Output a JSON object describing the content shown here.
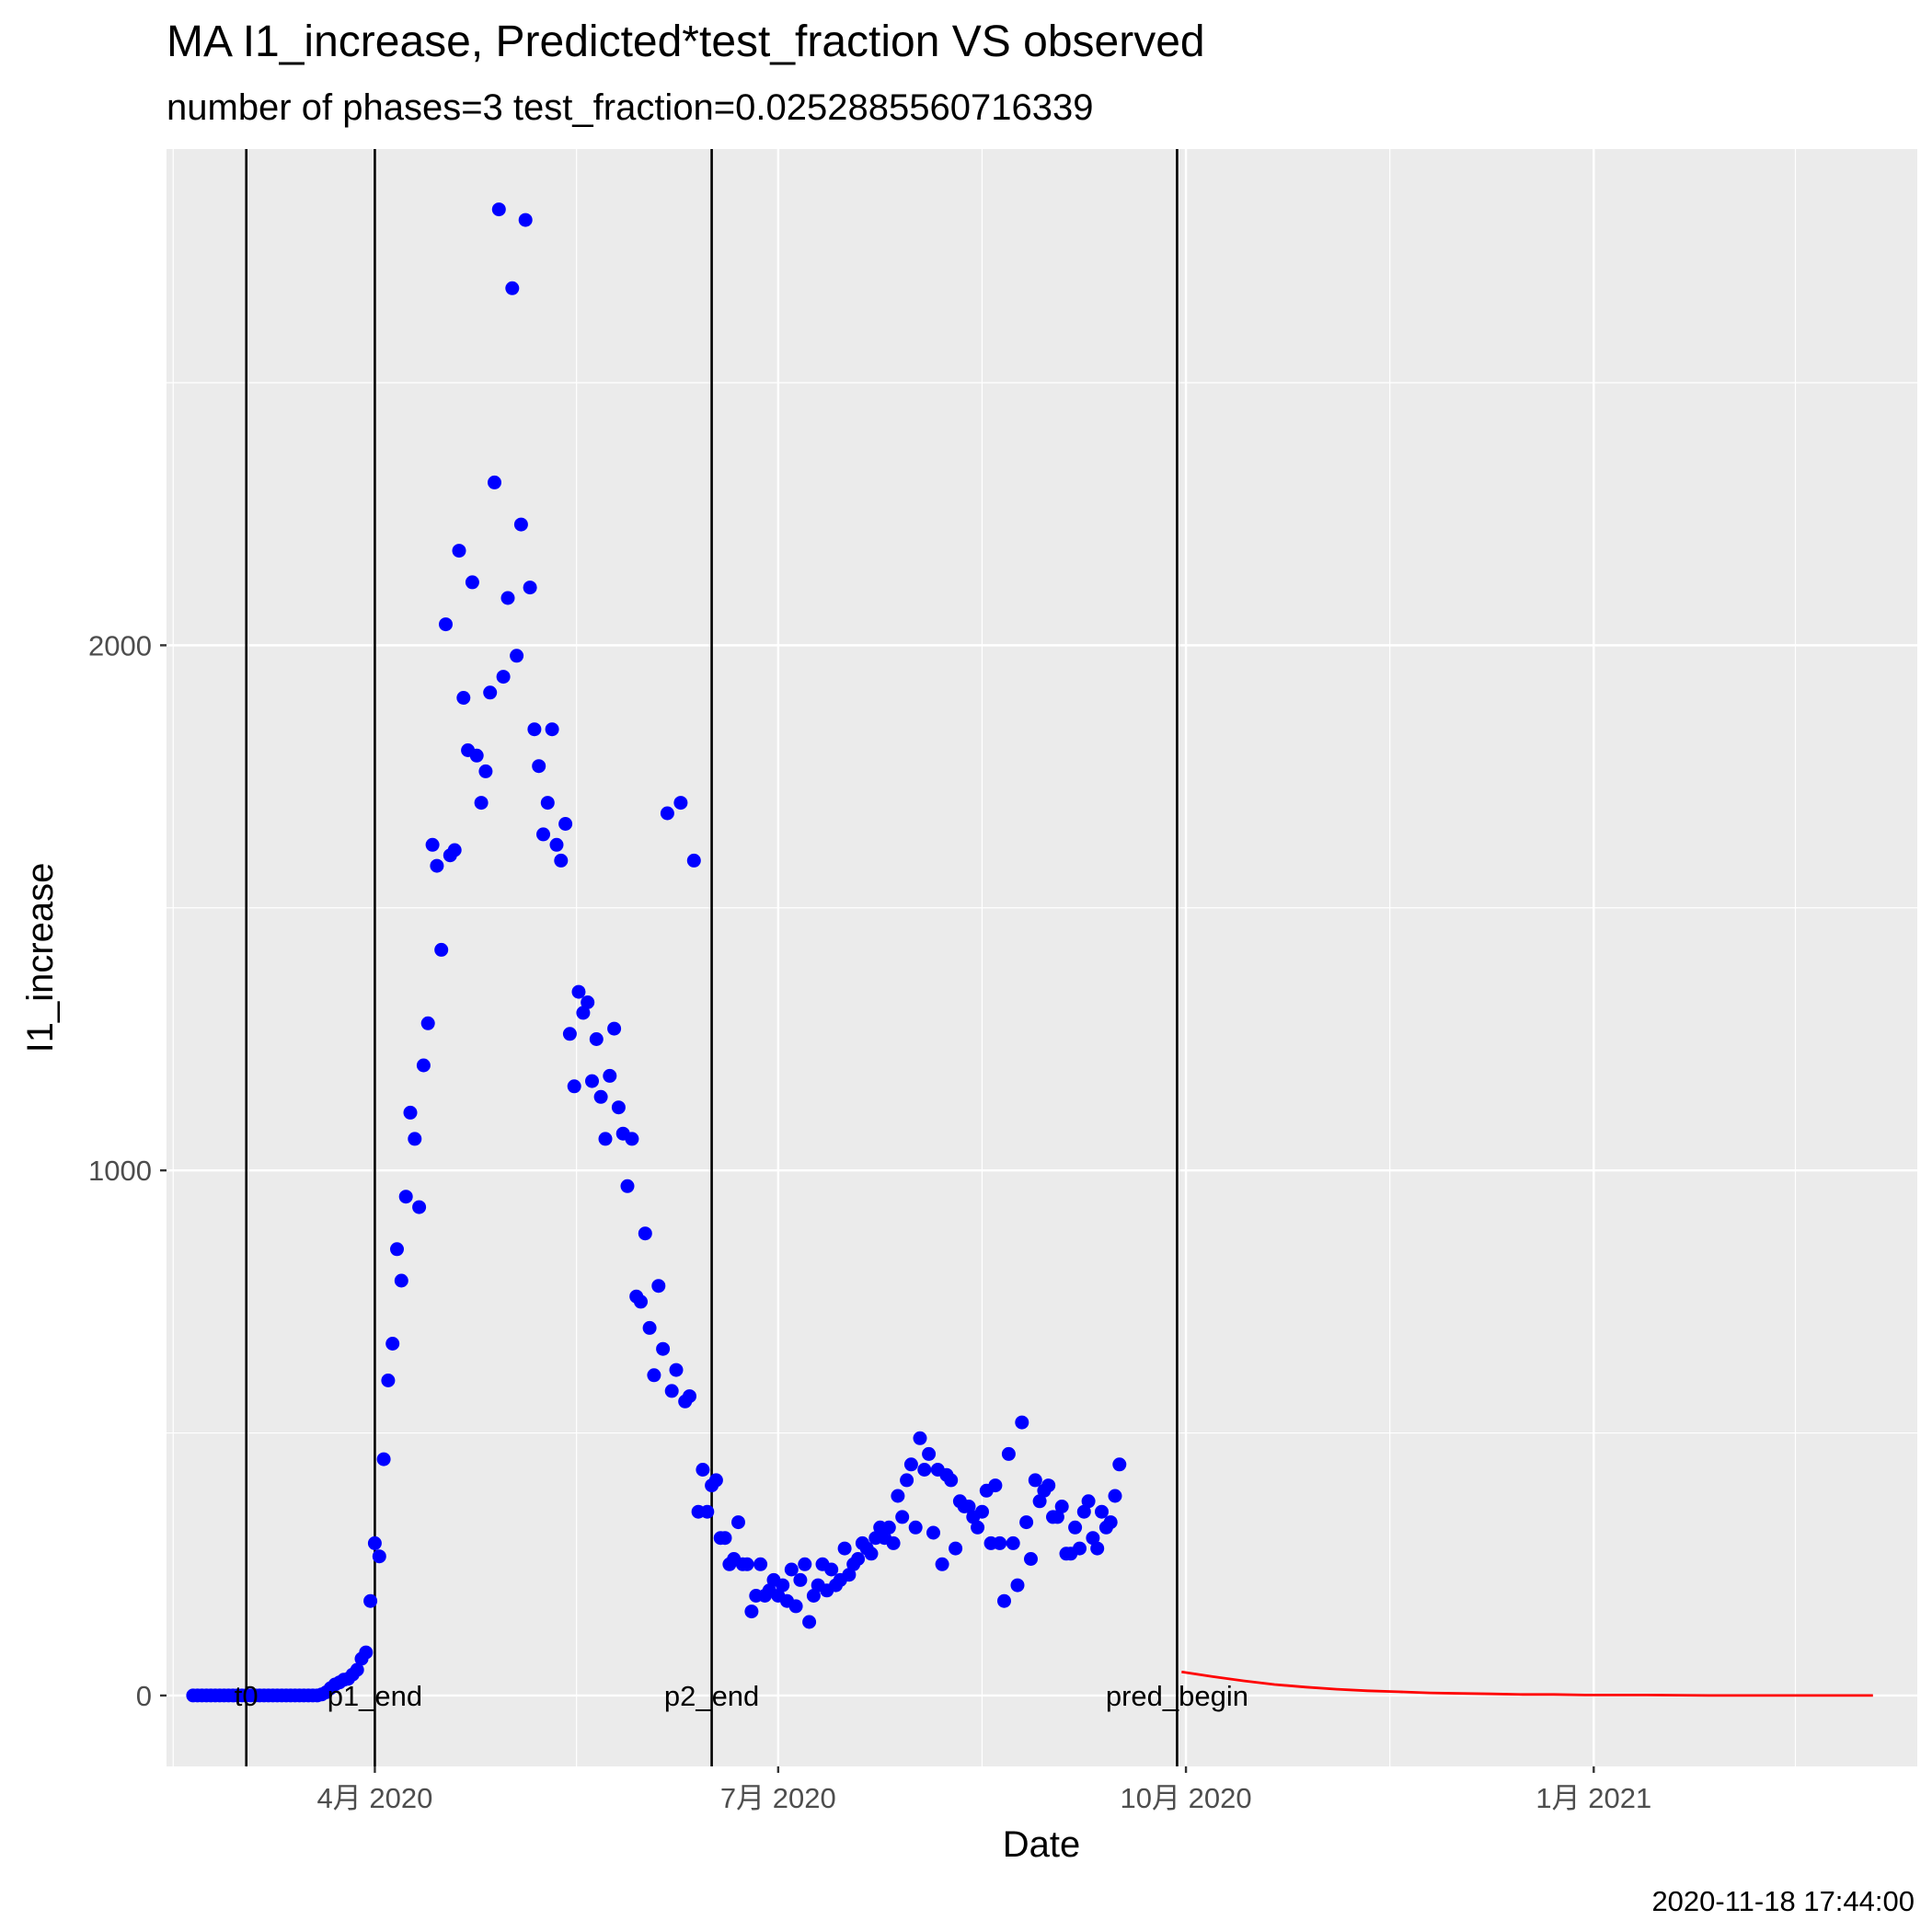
{
  "chart_data": {
    "type": "scatter",
    "title": "MA I1_increase, Predicted*test_fraction VS observed",
    "subtitle": "number of phases=3   test_fraction=0.0252885560716339",
    "xlabel": "Date",
    "ylabel": "I1_increase",
    "caption": "2020-11-18 17:44:00",
    "x_ticks": [
      {
        "date": "2020-04-01",
        "label": "4月 2020"
      },
      {
        "date": "2020-07-01",
        "label": "7月 2020"
      },
      {
        "date": "2020-10-01",
        "label": "10月 2020"
      },
      {
        "date": "2021-01-01",
        "label": "1月 2021"
      }
    ],
    "y_ticks": [
      0,
      1000,
      2000
    ],
    "xlim": [
      "2020-02-14",
      "2021-03-15"
    ],
    "ylim": [
      -135,
      2945
    ],
    "grid": true,
    "background": "#ebebeb",
    "vertical_lines": [
      {
        "date": "2020-03-03",
        "label": "t0"
      },
      {
        "date": "2020-04-01",
        "label": "p1_end"
      },
      {
        "date": "2020-06-16",
        "label": "p2_end"
      },
      {
        "date": "2020-09-29",
        "label": "pred_begin"
      }
    ],
    "series": [
      {
        "type": "scatter",
        "color": "#0000ff",
        "points": [
          [
            "2020-02-20",
            0
          ],
          [
            "2020-02-21",
            0
          ],
          [
            "2020-02-22",
            0
          ],
          [
            "2020-02-23",
            0
          ],
          [
            "2020-02-24",
            0
          ],
          [
            "2020-02-25",
            0
          ],
          [
            "2020-02-26",
            0
          ],
          [
            "2020-02-27",
            0
          ],
          [
            "2020-02-28",
            0
          ],
          [
            "2020-02-29",
            0
          ],
          [
            "2020-03-01",
            0
          ],
          [
            "2020-03-02",
            0
          ],
          [
            "2020-03-03",
            0
          ],
          [
            "2020-03-04",
            0
          ],
          [
            "2020-03-05",
            0
          ],
          [
            "2020-03-06",
            0
          ],
          [
            "2020-03-07",
            0
          ],
          [
            "2020-03-08",
            0
          ],
          [
            "2020-03-09",
            0
          ],
          [
            "2020-03-10",
            0
          ],
          [
            "2020-03-11",
            0
          ],
          [
            "2020-03-12",
            0
          ],
          [
            "2020-03-13",
            0
          ],
          [
            "2020-03-14",
            0
          ],
          [
            "2020-03-15",
            0
          ],
          [
            "2020-03-16",
            0
          ],
          [
            "2020-03-17",
            0
          ],
          [
            "2020-03-18",
            0
          ],
          [
            "2020-03-19",
            0
          ],
          [
            "2020-03-20",
            2
          ],
          [
            "2020-03-21",
            6
          ],
          [
            "2020-03-22",
            14
          ],
          [
            "2020-03-23",
            21
          ],
          [
            "2020-03-24",
            25
          ],
          [
            "2020-03-25",
            30
          ],
          [
            "2020-03-26",
            32
          ],
          [
            "2020-03-27",
            40
          ],
          [
            "2020-03-28",
            49
          ],
          [
            "2020-03-29",
            70
          ],
          [
            "2020-03-30",
            82
          ],
          [
            "2020-03-31",
            180
          ],
          [
            "2020-04-01",
            290
          ],
          [
            "2020-04-02",
            265
          ],
          [
            "2020-04-03",
            450
          ],
          [
            "2020-04-04",
            600
          ],
          [
            "2020-04-05",
            670
          ],
          [
            "2020-04-06",
            850
          ],
          [
            "2020-04-07",
            790
          ],
          [
            "2020-04-08",
            950
          ],
          [
            "2020-04-09",
            1110
          ],
          [
            "2020-04-10",
            1060
          ],
          [
            "2020-04-11",
            930
          ],
          [
            "2020-04-12",
            1200
          ],
          [
            "2020-04-13",
            1280
          ],
          [
            "2020-04-14",
            1620
          ],
          [
            "2020-04-15",
            1580
          ],
          [
            "2020-04-16",
            1420
          ],
          [
            "2020-04-17",
            2040
          ],
          [
            "2020-04-18",
            1600
          ],
          [
            "2020-04-19",
            1610
          ],
          [
            "2020-04-20",
            2180
          ],
          [
            "2020-04-21",
            1900
          ],
          [
            "2020-04-22",
            1800
          ],
          [
            "2020-04-23",
            2120
          ],
          [
            "2020-04-24",
            1790
          ],
          [
            "2020-04-25",
            1700
          ],
          [
            "2020-04-26",
            1760
          ],
          [
            "2020-04-27",
            1910
          ],
          [
            "2020-04-28",
            2310
          ],
          [
            "2020-04-29",
            2830
          ],
          [
            "2020-04-30",
            1940
          ],
          [
            "2020-05-01",
            2090
          ],
          [
            "2020-05-02",
            2680
          ],
          [
            "2020-05-03",
            1980
          ],
          [
            "2020-05-04",
            2230
          ],
          [
            "2020-05-05",
            2810
          ],
          [
            "2020-05-06",
            2110
          ],
          [
            "2020-05-07",
            1840
          ],
          [
            "2020-05-08",
            1770
          ],
          [
            "2020-05-09",
            1640
          ],
          [
            "2020-05-10",
            1700
          ],
          [
            "2020-05-11",
            1840
          ],
          [
            "2020-05-12",
            1620
          ],
          [
            "2020-05-13",
            1590
          ],
          [
            "2020-05-14",
            1660
          ],
          [
            "2020-05-15",
            1260
          ],
          [
            "2020-05-16",
            1160
          ],
          [
            "2020-05-17",
            1340
          ],
          [
            "2020-05-18",
            1300
          ],
          [
            "2020-05-19",
            1320
          ],
          [
            "2020-05-20",
            1170
          ],
          [
            "2020-05-21",
            1250
          ],
          [
            "2020-05-22",
            1140
          ],
          [
            "2020-05-23",
            1060
          ],
          [
            "2020-05-24",
            1180
          ],
          [
            "2020-05-25",
            1270
          ],
          [
            "2020-05-26",
            1120
          ],
          [
            "2020-05-27",
            1070
          ],
          [
            "2020-05-28",
            970
          ],
          [
            "2020-05-29",
            1060
          ],
          [
            "2020-05-30",
            760
          ],
          [
            "2020-05-31",
            750
          ],
          [
            "2020-06-01",
            880
          ],
          [
            "2020-06-02",
            700
          ],
          [
            "2020-06-03",
            610
          ],
          [
            "2020-06-04",
            780
          ],
          [
            "2020-06-05",
            660
          ],
          [
            "2020-06-06",
            1680
          ],
          [
            "2020-06-07",
            580
          ],
          [
            "2020-06-08",
            620
          ],
          [
            "2020-06-09",
            1700
          ],
          [
            "2020-06-10",
            560
          ],
          [
            "2020-06-11",
            570
          ],
          [
            "2020-06-12",
            1590
          ],
          [
            "2020-06-13",
            350
          ],
          [
            "2020-06-14",
            430
          ],
          [
            "2020-06-15",
            350
          ],
          [
            "2020-06-16",
            400
          ],
          [
            "2020-06-17",
            410
          ],
          [
            "2020-06-18",
            300
          ],
          [
            "2020-06-19",
            300
          ],
          [
            "2020-06-20",
            250
          ],
          [
            "2020-06-21",
            260
          ],
          [
            "2020-06-22",
            330
          ],
          [
            "2020-06-23",
            250
          ],
          [
            "2020-06-24",
            250
          ],
          [
            "2020-06-25",
            160
          ],
          [
            "2020-06-26",
            190
          ],
          [
            "2020-06-27",
            250
          ],
          [
            "2020-06-28",
            190
          ],
          [
            "2020-06-29",
            200
          ],
          [
            "2020-06-30",
            220
          ],
          [
            "2020-07-01",
            190
          ],
          [
            "2020-07-02",
            210
          ],
          [
            "2020-07-03",
            180
          ],
          [
            "2020-07-04",
            240
          ],
          [
            "2020-07-05",
            170
          ],
          [
            "2020-07-06",
            220
          ],
          [
            "2020-07-07",
            250
          ],
          [
            "2020-07-08",
            140
          ],
          [
            "2020-07-09",
            190
          ],
          [
            "2020-07-10",
            210
          ],
          [
            "2020-07-11",
            250
          ],
          [
            "2020-07-12",
            200
          ],
          [
            "2020-07-13",
            240
          ],
          [
            "2020-07-14",
            210
          ],
          [
            "2020-07-15",
            220
          ],
          [
            "2020-07-16",
            280
          ],
          [
            "2020-07-17",
            230
          ],
          [
            "2020-07-18",
            250
          ],
          [
            "2020-07-19",
            260
          ],
          [
            "2020-07-20",
            290
          ],
          [
            "2020-07-21",
            280
          ],
          [
            "2020-07-22",
            270
          ],
          [
            "2020-07-23",
            300
          ],
          [
            "2020-07-24",
            320
          ],
          [
            "2020-07-25",
            300
          ],
          [
            "2020-07-26",
            320
          ],
          [
            "2020-07-27",
            290
          ],
          [
            "2020-07-28",
            380
          ],
          [
            "2020-07-29",
            340
          ],
          [
            "2020-07-30",
            410
          ],
          [
            "2020-07-31",
            440
          ],
          [
            "2020-08-01",
            320
          ],
          [
            "2020-08-02",
            490
          ],
          [
            "2020-08-03",
            430
          ],
          [
            "2020-08-04",
            460
          ],
          [
            "2020-08-05",
            310
          ],
          [
            "2020-08-06",
            430
          ],
          [
            "2020-08-07",
            250
          ],
          [
            "2020-08-08",
            420
          ],
          [
            "2020-08-09",
            410
          ],
          [
            "2020-08-10",
            280
          ],
          [
            "2020-08-11",
            370
          ],
          [
            "2020-08-12",
            360
          ],
          [
            "2020-08-13",
            360
          ],
          [
            "2020-08-14",
            340
          ],
          [
            "2020-08-15",
            320
          ],
          [
            "2020-08-16",
            350
          ],
          [
            "2020-08-17",
            390
          ],
          [
            "2020-08-18",
            290
          ],
          [
            "2020-08-19",
            400
          ],
          [
            "2020-08-20",
            290
          ],
          [
            "2020-08-21",
            180
          ],
          [
            "2020-08-22",
            460
          ],
          [
            "2020-08-23",
            290
          ],
          [
            "2020-08-24",
            210
          ],
          [
            "2020-08-25",
            520
          ],
          [
            "2020-08-26",
            330
          ],
          [
            "2020-08-27",
            260
          ],
          [
            "2020-08-28",
            410
          ],
          [
            "2020-08-29",
            370
          ],
          [
            "2020-08-30",
            390
          ],
          [
            "2020-08-31",
            400
          ],
          [
            "2020-09-01",
            340
          ],
          [
            "2020-09-02",
            340
          ],
          [
            "2020-09-03",
            360
          ],
          [
            "2020-09-04",
            270
          ],
          [
            "2020-09-05",
            270
          ],
          [
            "2020-09-06",
            320
          ],
          [
            "2020-09-07",
            280
          ],
          [
            "2020-09-08",
            350
          ],
          [
            "2020-09-09",
            370
          ],
          [
            "2020-09-10",
            300
          ],
          [
            "2020-09-11",
            280
          ],
          [
            "2020-09-12",
            350
          ],
          [
            "2020-09-13",
            320
          ],
          [
            "2020-09-14",
            330
          ],
          [
            "2020-09-15",
            380
          ],
          [
            "2020-09-16",
            440
          ]
        ]
      },
      {
        "type": "line",
        "color": "#ff0000",
        "points": [
          [
            "2020-09-30",
            45
          ],
          [
            "2020-10-07",
            36
          ],
          [
            "2020-10-14",
            28
          ],
          [
            "2020-10-21",
            21
          ],
          [
            "2020-10-28",
            16
          ],
          [
            "2020-11-04",
            12
          ],
          [
            "2020-11-11",
            9
          ],
          [
            "2020-11-18",
            7
          ],
          [
            "2020-11-25",
            5
          ],
          [
            "2020-12-02",
            4
          ],
          [
            "2020-12-09",
            3
          ],
          [
            "2020-12-16",
            2
          ],
          [
            "2020-12-23",
            2
          ],
          [
            "2020-12-30",
            1
          ],
          [
            "2021-01-13",
            1
          ],
          [
            "2021-01-27",
            0
          ],
          [
            "2021-02-10",
            0
          ],
          [
            "2021-02-24",
            0
          ],
          [
            "2021-03-05",
            0
          ]
        ]
      }
    ]
  }
}
